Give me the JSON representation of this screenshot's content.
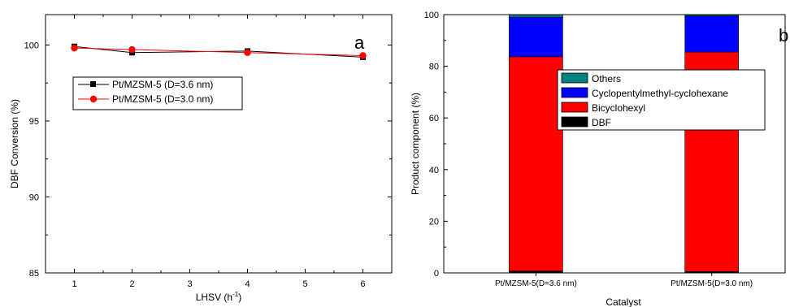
{
  "chart_data": [
    {
      "type": "line",
      "panel_label": "a",
      "xlabel": "LHSV (h",
      "xlabel_sup": "-1",
      "xlabel_end": ")",
      "ylabel": "DBF Conversion (%)",
      "xlim": [
        0.5,
        6.5
      ],
      "ylim": [
        85,
        102
      ],
      "xticks": [
        1,
        2,
        3,
        4,
        5,
        6
      ],
      "yticks": [
        85,
        90,
        95,
        100
      ],
      "x": [
        1,
        2,
        4,
        6
      ],
      "legend_position": "upper-left-center",
      "series": [
        {
          "name": "Pt/MZSM-5 (D=3.6 nm)",
          "values": [
            99.9,
            99.5,
            99.6,
            99.2
          ],
          "color": "#000000",
          "marker": "square"
        },
        {
          "name": "Pt/MZSM-5 (D=3.0 nm)",
          "values": [
            99.8,
            99.7,
            99.5,
            99.3
          ],
          "color": "#ff0000",
          "marker": "circle"
        }
      ]
    },
    {
      "type": "bar",
      "stacked": true,
      "panel_label": "b",
      "xlabel": "Catalyst",
      "ylabel": "Product component (%)",
      "ylim": [
        0,
        100
      ],
      "yticks": [
        0,
        20,
        40,
        60,
        80,
        100
      ],
      "categories": [
        "Pt/MZSM-5(D=3.6 nm)",
        "Pt/MZSM-5(D=3.0 nm)"
      ],
      "legend_position": "center",
      "legend_order": [
        "Others",
        "Cyclopentylmethyl-cyclohexane",
        "Bicyclohexyl",
        "DBF"
      ],
      "series": [
        {
          "name": "DBF",
          "values": [
            0.7,
            0.5
          ],
          "color": "#000000"
        },
        {
          "name": "Bicyclohexyl",
          "values": [
            83,
            85
          ],
          "color": "#ff0000"
        },
        {
          "name": "Cyclopentylmethyl-cyclohexane",
          "values": [
            15.3,
            14
          ],
          "color": "#0000ff"
        },
        {
          "name": "Others",
          "values": [
            1,
            0.5
          ],
          "color": "#008080"
        }
      ]
    }
  ]
}
